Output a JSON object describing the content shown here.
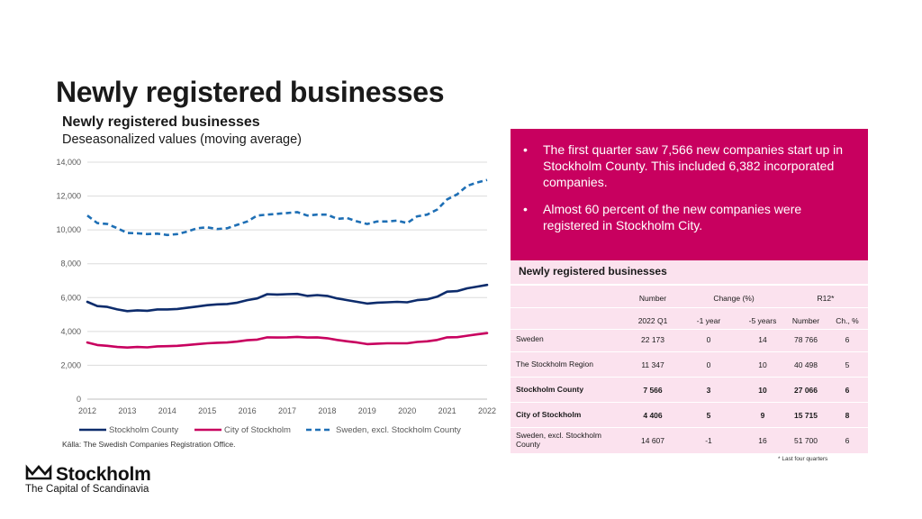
{
  "page": {
    "title": "Newly registered businesses",
    "source": "Källa: The Swedish Companies Registration Office.",
    "logo_word": "Stockholm",
    "logo_tagline": "The Capital of Scandinavia",
    "logo_icon": "crown-icon"
  },
  "callout": {
    "bullet_char": "•",
    "bullets": [
      "The first quarter saw 7,566 new companies start up in Stockholm County. This included 6,382 incorporated companies.",
      "Almost 60 percent of the new companies were registered in Stockholm City."
    ]
  },
  "table": {
    "title": "Newly registered businesses",
    "group_headers": [
      "Number",
      "Change (%)",
      "R12*"
    ],
    "sub_headers": [
      "2022 Q1",
      "-1 year",
      "-5 years",
      "Number",
      "Ch., %"
    ],
    "rows": [
      {
        "label": "Sweden",
        "values": [
          "22 173",
          "0",
          "14",
          "78 766",
          "6"
        ],
        "bold": false
      },
      {
        "label": "The Stockholm Region",
        "values": [
          "11 347",
          "0",
          "10",
          "40 498",
          "5"
        ],
        "bold": false
      },
      {
        "label": "Stockholm County",
        "values": [
          "7 566",
          "3",
          "10",
          "27 066",
          "6"
        ],
        "bold": true
      },
      {
        "label": "City of Stockholm",
        "values": [
          "4 406",
          "5",
          "9",
          "15 715",
          "8"
        ],
        "bold": true
      },
      {
        "label": "Sweden, excl. Stockholm County",
        "values": [
          "14 607",
          "-1",
          "16",
          "51 700",
          "6"
        ],
        "bold": false
      }
    ],
    "footnote": "* Last four quarters"
  },
  "chart_data": {
    "type": "line",
    "title": "Newly registered businesses",
    "subtitle": "Deseasonalized values (moving average)",
    "xlabel": "",
    "ylabel": "",
    "x_ticks": [
      "2012",
      "2013",
      "2014",
      "2015",
      "2016",
      "2017",
      "2018",
      "2019",
      "2020",
      "2021",
      "2022"
    ],
    "y_ticks": [
      "0",
      "2,000",
      "4,000",
      "6,000",
      "8,000",
      "10,000",
      "12,000",
      "14,000"
    ],
    "ylim": [
      0,
      14000
    ],
    "xlim": [
      2012,
      2022
    ],
    "x": [
      2012.0,
      2012.25,
      2012.5,
      2012.75,
      2013.0,
      2013.25,
      2013.5,
      2013.75,
      2014.0,
      2014.25,
      2014.5,
      2014.75,
      2015.0,
      2015.25,
      2015.5,
      2015.75,
      2016.0,
      2016.25,
      2016.5,
      2016.75,
      2017.0,
      2017.25,
      2017.5,
      2017.75,
      2018.0,
      2018.25,
      2018.5,
      2018.75,
      2019.0,
      2019.25,
      2019.5,
      2019.75,
      2020.0,
      2020.25,
      2020.5,
      2020.75,
      2021.0,
      2021.25,
      2021.5,
      2021.75,
      2022.0
    ],
    "grid": true,
    "legend_position": "bottom",
    "series": [
      {
        "name": "Stockholm County",
        "color": "#0d2c6c",
        "style": "solid",
        "values": [
          5750,
          5500,
          5450,
          5300,
          5200,
          5250,
          5220,
          5300,
          5300,
          5330,
          5400,
          5470,
          5550,
          5600,
          5620,
          5700,
          5850,
          5950,
          6200,
          6180,
          6200,
          6220,
          6100,
          6150,
          6100,
          5950,
          5850,
          5750,
          5650,
          5700,
          5720,
          5750,
          5720,
          5850,
          5900,
          6050,
          6350,
          6380,
          6550,
          6650,
          6750
        ]
      },
      {
        "name": "City of Stockholm",
        "color": "#c8005f",
        "style": "solid",
        "values": [
          3350,
          3200,
          3150,
          3080,
          3050,
          3080,
          3060,
          3120,
          3130,
          3150,
          3200,
          3250,
          3300,
          3330,
          3350,
          3400,
          3480,
          3520,
          3650,
          3640,
          3650,
          3680,
          3640,
          3650,
          3600,
          3500,
          3420,
          3350,
          3250,
          3280,
          3300,
          3300,
          3300,
          3380,
          3420,
          3500,
          3650,
          3660,
          3750,
          3830,
          3900
        ]
      },
      {
        "name": "Sweden, excl. Stockholm County",
        "color": "#1e6fb5",
        "style": "dashed",
        "values": [
          10850,
          10400,
          10350,
          10100,
          9820,
          9800,
          9750,
          9780,
          9700,
          9750,
          9900,
          10100,
          10150,
          10050,
          10100,
          10300,
          10500,
          10850,
          10900,
          10950,
          11000,
          11050,
          10850,
          10900,
          10900,
          10650,
          10700,
          10500,
          10350,
          10500,
          10500,
          10550,
          10400,
          10800,
          10900,
          11200,
          11800,
          12100,
          12600,
          12800,
          12950
        ]
      }
    ]
  }
}
